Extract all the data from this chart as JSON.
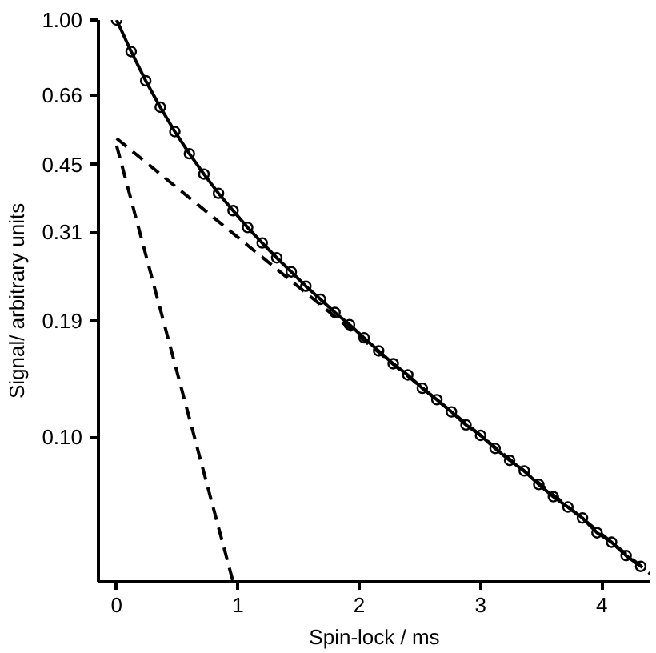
{
  "chart_data": {
    "type": "scatter",
    "xlabel": "Spin-lock / ms",
    "ylabel": "Signal/ arbitrary units",
    "log": "y",
    "grid": false,
    "xlim": [
      -0.15,
      4.4
    ],
    "xticks": [
      0,
      1,
      2,
      3,
      4
    ],
    "ylim": [
      0.045,
      1.0
    ],
    "yticks": [
      {
        "value": 0.1,
        "label": "0.10"
      },
      0.19,
      0.31,
      0.45,
      0.66,
      {
        "value": 1.0,
        "label": "1.00"
      }
    ],
    "x": [
      0,
      0.12,
      0.24,
      0.36,
      0.48,
      0.6,
      0.72,
      0.84,
      0.96,
      1.08,
      1.2,
      1.32,
      1.44,
      1.56,
      1.68,
      1.8,
      1.92,
      2.04,
      2.16,
      2.28,
      2.4,
      2.52,
      2.64,
      2.76,
      2.88,
      3.0,
      3.12,
      3.24,
      3.36,
      3.48,
      3.6,
      3.72,
      3.84,
      3.96,
      4.08,
      4.2,
      4.32
    ],
    "series": [
      {
        "marker": "circle",
        "color": "#000000",
        "values": [
          1.0,
          0.84,
          0.715,
          0.618,
          0.54,
          0.478,
          0.427,
          0.384,
          0.349,
          0.318,
          0.292,
          0.269,
          0.249,
          0.23,
          0.214,
          0.199,
          0.186,
          0.173,
          0.161,
          0.15,
          0.141,
          0.131,
          0.123,
          0.115,
          0.107,
          0.101,
          0.094,
          0.088,
          0.083,
          0.077,
          0.072,
          0.068,
          0.064,
          0.059,
          0.056,
          0.052,
          0.049
        ]
      },
      {
        "type": "line",
        "line_style": "solid",
        "color": "#000000",
        "values": [
          1.0,
          0.84,
          0.715,
          0.618,
          0.54,
          0.478,
          0.427,
          0.384,
          0.349,
          0.318,
          0.292,
          0.269,
          0.249,
          0.23,
          0.214,
          0.199,
          0.186,
          0.173,
          0.161,
          0.15,
          0.141,
          0.131,
          0.123,
          0.115,
          0.107,
          0.101,
          0.094,
          0.088,
          0.083,
          0.077,
          0.072,
          0.068,
          0.064,
          0.059,
          0.056,
          0.052,
          0.049
        ]
      },
      {
        "type": "line",
        "line_style": "dashed",
        "color": "#000000",
        "x": [
          0,
          4.4
        ],
        "values": [
          0.52,
          0.047
        ]
      },
      {
        "type": "line",
        "line_style": "dashed",
        "color": "#000000",
        "x": [
          0,
          0.96
        ],
        "values": [
          0.5,
          0.045
        ]
      }
    ]
  }
}
